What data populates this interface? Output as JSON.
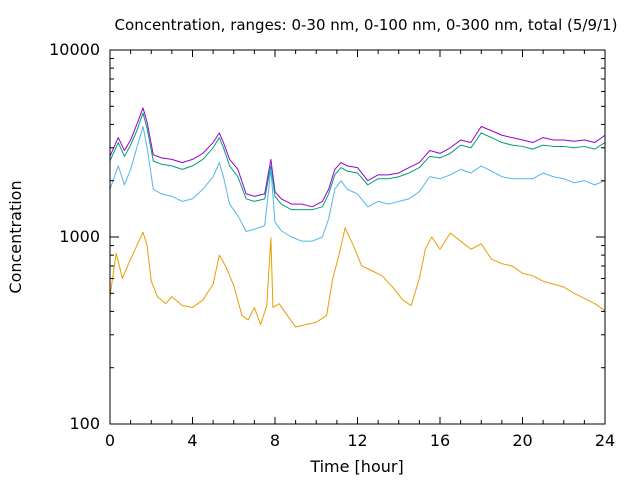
{
  "chart_data": {
    "type": "line",
    "title": "Concentration, ranges: 0-30 nm, 0-100 nm, 0-300 nm, total (5/9/1)",
    "xlabel": "Time [hour]",
    "ylabel": "Concentration",
    "xlim": [
      0,
      24
    ],
    "ylim": [
      100,
      10000
    ],
    "yscale": "log",
    "xticks": [
      0,
      4,
      8,
      12,
      16,
      20,
      24
    ],
    "xtick_labels": [
      "0",
      "4",
      "8",
      "12",
      "16",
      "20",
      "24"
    ],
    "yticks": [
      100,
      1000,
      10000
    ],
    "ytick_labels": [
      "100",
      "1000",
      "10000"
    ],
    "grid": false,
    "series": [
      {
        "color": "#9400d3",
        "x": [
          0,
          0.4,
          0.7,
          1.0,
          1.3,
          1.6,
          1.8,
          2.1,
          2.5,
          3.0,
          3.5,
          4.0,
          4.5,
          5.0,
          5.3,
          5.5,
          5.8,
          6.2,
          6.6,
          7.0,
          7.5,
          7.8,
          8.0,
          8.3,
          8.8,
          9.3,
          9.8,
          10.3,
          10.6,
          10.9,
          11.2,
          11.5,
          12.0,
          12.5,
          13.0,
          13.5,
          14.0,
          14.5,
          15.0,
          15.5,
          16.0,
          16.5,
          17.0,
          17.5,
          18.0,
          18.5,
          19.0,
          19.5,
          20.0,
          20.5,
          21.0,
          21.5,
          22.0,
          22.5,
          23.0,
          23.5,
          24.0
        ],
        "y": [
          2700,
          3400,
          2900,
          3300,
          4000,
          4900,
          4100,
          2750,
          2650,
          2600,
          2500,
          2600,
          2800,
          3200,
          3600,
          3200,
          2600,
          2300,
          1700,
          1650,
          1700,
          2600,
          1750,
          1600,
          1500,
          1500,
          1450,
          1550,
          1800,
          2300,
          2500,
          2400,
          2350,
          2000,
          2150,
          2150,
          2200,
          2350,
          2500,
          2900,
          2800,
          3000,
          3300,
          3200,
          3900,
          3700,
          3500,
          3400,
          3300,
          3200,
          3400,
          3300,
          3300,
          3250,
          3300,
          3200,
          3500
        ]
      },
      {
        "color": "#009e73",
        "x": [
          0,
          0.4,
          0.7,
          1.0,
          1.3,
          1.6,
          1.8,
          2.1,
          2.5,
          3.0,
          3.5,
          4.0,
          4.5,
          5.0,
          5.3,
          5.5,
          5.8,
          6.2,
          6.6,
          7.0,
          7.5,
          7.8,
          8.0,
          8.3,
          8.8,
          9.3,
          9.8,
          10.3,
          10.6,
          10.9,
          11.2,
          11.5,
          12.0,
          12.5,
          13.0,
          13.5,
          14.0,
          14.5,
          15.0,
          15.5,
          16.0,
          16.5,
          17.0,
          17.5,
          18.0,
          18.5,
          19.0,
          19.5,
          20.0,
          20.5,
          21.0,
          21.5,
          22.0,
          22.5,
          23.0,
          23.5,
          24.0
        ],
        "y": [
          2550,
          3200,
          2700,
          3100,
          3700,
          4600,
          3800,
          2550,
          2450,
          2400,
          2300,
          2400,
          2600,
          3000,
          3400,
          3000,
          2400,
          2100,
          1600,
          1550,
          1600,
          2400,
          1650,
          1500,
          1400,
          1400,
          1400,
          1450,
          1700,
          2150,
          2350,
          2250,
          2200,
          1900,
          2050,
          2050,
          2100,
          2200,
          2350,
          2700,
          2650,
          2800,
          3100,
          3000,
          3600,
          3400,
          3200,
          3100,
          3050,
          2950,
          3100,
          3050,
          3050,
          3000,
          3050,
          2950,
          3200
        ]
      },
      {
        "color": "#56b4e9",
        "x": [
          0,
          0.4,
          0.7,
          1.0,
          1.3,
          1.6,
          1.8,
          2.1,
          2.5,
          3.0,
          3.5,
          4.0,
          4.5,
          5.0,
          5.3,
          5.5,
          5.8,
          6.2,
          6.6,
          7.0,
          7.5,
          7.8,
          8.0,
          8.3,
          8.8,
          9.3,
          9.8,
          10.3,
          10.6,
          10.9,
          11.2,
          11.5,
          12.0,
          12.5,
          13.0,
          13.5,
          14.0,
          14.5,
          15.0,
          15.5,
          16.0,
          16.5,
          17.0,
          17.5,
          18.0,
          18.5,
          19.0,
          19.5,
          20.0,
          20.5,
          21.0,
          21.5,
          22.0,
          22.5,
          23.0,
          23.5,
          24.0
        ],
        "y": [
          1800,
          2400,
          1900,
          2300,
          3000,
          3900,
          3000,
          1800,
          1700,
          1650,
          1550,
          1600,
          1800,
          2100,
          2500,
          2100,
          1500,
          1300,
          1070,
          1100,
          1150,
          2300,
          1200,
          1080,
          1000,
          950,
          950,
          1000,
          1250,
          1800,
          2000,
          1800,
          1700,
          1450,
          1550,
          1500,
          1550,
          1600,
          1750,
          2100,
          2050,
          2150,
          2300,
          2200,
          2400,
          2250,
          2100,
          2050,
          2050,
          2050,
          2200,
          2100,
          2050,
          1950,
          2000,
          1900,
          2000
        ]
      },
      {
        "color": "#e69f00",
        "x": [
          0,
          0.3,
          0.6,
          0.9,
          1.2,
          1.6,
          1.8,
          2.0,
          2.3,
          2.7,
          3.0,
          3.5,
          4.0,
          4.5,
          5.0,
          5.3,
          5.6,
          6.0,
          6.4,
          6.7,
          7.0,
          7.3,
          7.6,
          7.8,
          7.9,
          8.2,
          8.6,
          9.0,
          9.5,
          10.0,
          10.5,
          10.8,
          11.1,
          11.4,
          11.8,
          12.2,
          12.7,
          13.2,
          13.7,
          14.2,
          14.6,
          15.0,
          15.3,
          15.6,
          16.0,
          16.5,
          17.0,
          17.5,
          18.0,
          18.5,
          19.0,
          19.5,
          20.0,
          20.5,
          21.0,
          21.5,
          22.0,
          22.5,
          23.0,
          23.5,
          24.0
        ],
        "y": [
          480,
          820,
          600,
          720,
          850,
          1060,
          900,
          580,
          480,
          440,
          480,
          430,
          420,
          460,
          560,
          800,
          700,
          550,
          380,
          360,
          420,
          340,
          430,
          990,
          420,
          440,
          380,
          330,
          340,
          350,
          380,
          600,
          800,
          1120,
          900,
          700,
          660,
          620,
          540,
          460,
          430,
          600,
          870,
          1000,
          860,
          1050,
          950,
          860,
          920,
          760,
          720,
          700,
          640,
          620,
          580,
          560,
          540,
          500,
          470,
          440,
          405
        ]
      }
    ]
  }
}
